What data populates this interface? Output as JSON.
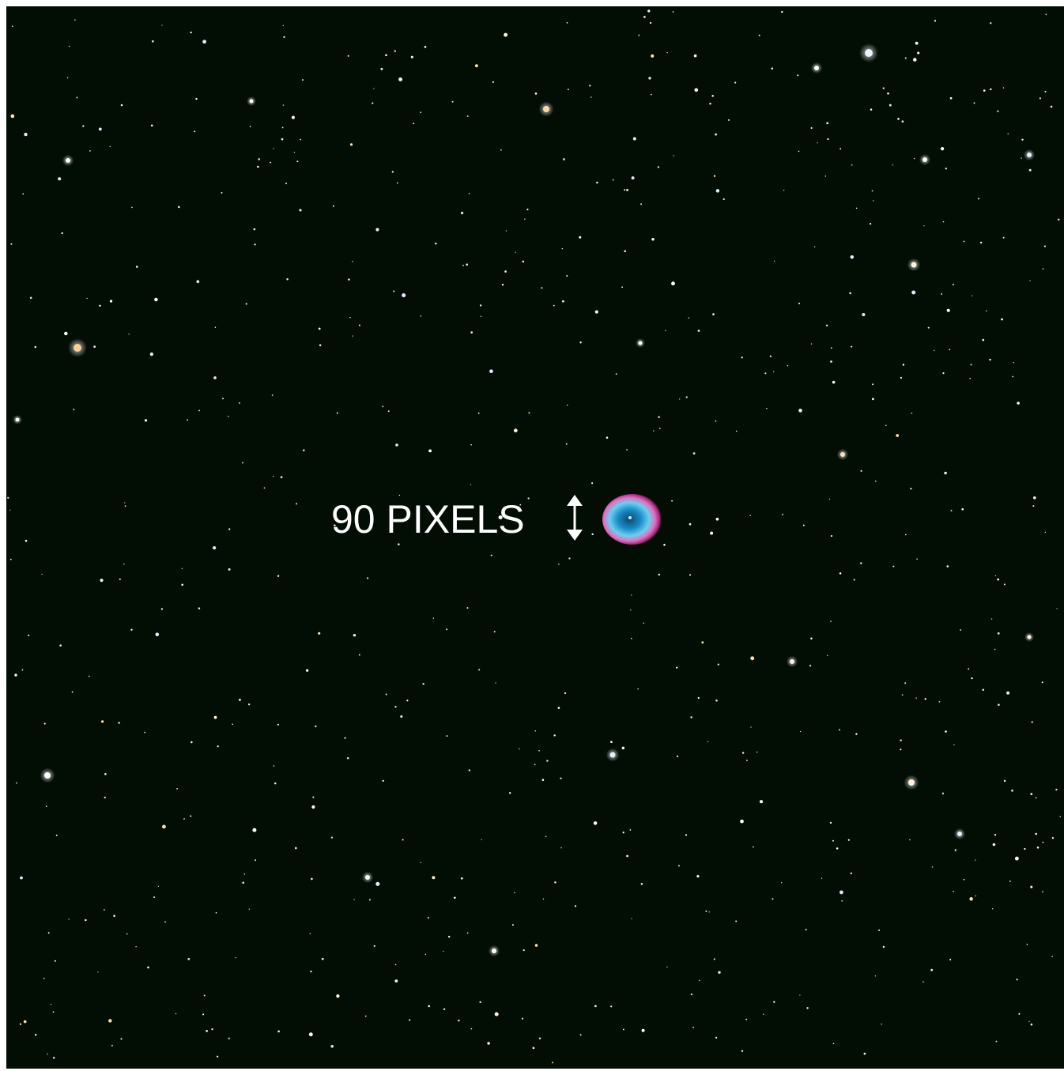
{
  "annotation": "90 PIXELS"
}
